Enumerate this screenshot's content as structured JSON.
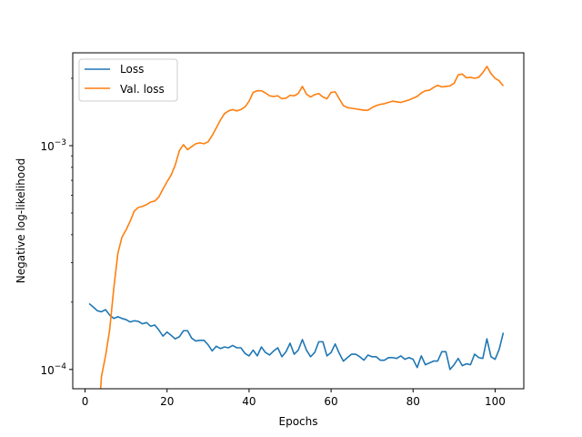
{
  "chart_data": {
    "type": "line",
    "xlabel": "Epochs",
    "ylabel": "Negative log-likelihood",
    "xlim": [
      -3,
      107
    ],
    "ylim": [
      8.2e-05,
      0.0026
    ],
    "yscale": "log",
    "grid": false,
    "legend_position": "top-left",
    "x_ticks": [
      0,
      20,
      40,
      60,
      80,
      100
    ],
    "x_tick_labels": [
      "0",
      "20",
      "40",
      "60",
      "80",
      "100"
    ],
    "y_major_ticks": [
      0.0001,
      0.001
    ],
    "y_tick_labels": [
      {
        "base": "10",
        "exp": "−4"
      },
      {
        "base": "10",
        "exp": "−3"
      }
    ],
    "y_minor_ticks": [
      0.0002,
      0.0003,
      0.0004,
      0.0005,
      0.0006,
      0.0007,
      0.0008,
      0.0009,
      0.002
    ],
    "series": [
      {
        "name": "Loss",
        "color": "#1f77b4",
        "x": [
          1,
          2,
          3,
          4,
          5,
          6,
          7,
          8,
          9,
          10,
          11,
          12,
          13,
          14,
          15,
          16,
          17,
          18,
          19,
          20,
          21,
          22,
          23,
          24,
          25,
          26,
          27,
          28,
          29,
          30,
          31,
          32,
          33,
          34,
          35,
          36,
          37,
          38,
          39,
          40,
          41,
          42,
          43,
          44,
          45,
          46,
          47,
          48,
          49,
          50,
          51,
          52,
          53,
          54,
          55,
          56,
          57,
          58,
          59,
          60,
          61,
          62,
          63,
          64,
          65,
          66,
          67,
          68,
          69,
          70,
          71,
          72,
          73,
          74,
          75,
          76,
          77,
          78,
          79,
          80,
          81,
          82,
          83,
          84,
          85,
          86,
          87,
          88,
          89,
          90,
          91,
          92,
          93,
          94,
          95,
          96,
          97,
          98,
          99,
          100,
          101,
          102
        ],
        "y": [
          0.000197,
          0.00019,
          0.000183,
          0.000181,
          0.000185,
          0.000175,
          0.000169,
          0.000172,
          0.000169,
          0.000167,
          0.000163,
          0.000165,
          0.000164,
          0.00016,
          0.000162,
          0.000156,
          0.000158,
          0.00015,
          0.000141,
          0.000147,
          0.000142,
          0.000137,
          0.00014,
          0.000149,
          0.000149,
          0.000138,
          0.000134,
          0.000135,
          0.000135,
          0.000129,
          0.000121,
          0.000127,
          0.000124,
          0.000126,
          0.000125,
          0.000128,
          0.000125,
          0.000125,
          0.000118,
          0.000115,
          0.000122,
          0.000115,
          0.000126,
          0.000119,
          0.000116,
          0.000121,
          0.000125,
          0.000114,
          0.00012,
          0.000131,
          0.000117,
          0.000122,
          0.000136,
          0.000122,
          0.000114,
          0.000119,
          0.000133,
          0.000133,
          0.000115,
          0.000119,
          0.00013,
          0.000118,
          0.000109,
          0.000113,
          0.000117,
          0.000117,
          0.000114,
          0.00011,
          0.000116,
          0.000114,
          0.000114,
          0.00011,
          0.00011,
          0.000113,
          0.000113,
          0.000112,
          0.000115,
          0.000111,
          0.000113,
          0.000111,
          0.000102,
          0.000115,
          0.000105,
          0.000107,
          0.000109,
          0.000109,
          0.00012,
          0.00012,
          0.0001,
          0.000105,
          0.000112,
          0.000104,
          0.000106,
          0.000105,
          0.000117,
          0.000113,
          0.000112,
          0.000137,
          0.000114,
          0.000111,
          0.000123,
          0.000146
        ]
      },
      {
        "name": "Val. loss",
        "color": "#ff7f0e",
        "x": [
          3.8,
          4,
          5,
          6,
          7,
          8,
          9,
          10,
          11,
          12,
          13,
          14,
          15,
          16,
          17,
          18,
          19,
          20,
          21,
          22,
          23,
          24,
          25,
          26,
          27,
          28,
          29,
          30,
          31,
          32,
          33,
          34,
          35,
          36,
          37,
          38,
          39,
          40,
          41,
          42,
          43,
          44,
          45,
          46,
          47,
          48,
          49,
          50,
          51,
          52,
          53,
          54,
          55,
          56,
          57,
          58,
          59,
          60,
          61,
          62,
          63,
          64,
          65,
          66,
          67,
          68,
          69,
          70,
          71,
          72,
          73,
          74,
          75,
          76,
          77,
          78,
          79,
          80,
          81,
          82,
          83,
          84,
          85,
          86,
          87,
          88,
          89,
          90,
          91,
          92,
          93,
          94,
          95,
          96,
          97,
          98,
          99,
          100,
          101,
          102
        ],
        "y": [
          8.2e-05,
          9.3e-05,
          0.000115,
          0.00015,
          0.00023,
          0.00033,
          0.00039,
          0.00042,
          0.00046,
          0.00051,
          0.00053,
          0.000535,
          0.000545,
          0.00056,
          0.000565,
          0.00059,
          0.00064,
          0.00069,
          0.00074,
          0.00082,
          0.00095,
          0.00101,
          0.00096,
          0.00099,
          0.00102,
          0.00103,
          0.00102,
          0.00104,
          0.00111,
          0.0012,
          0.0013,
          0.00139,
          0.00143,
          0.00145,
          0.00143,
          0.00145,
          0.00149,
          0.00158,
          0.00173,
          0.00176,
          0.00176,
          0.00172,
          0.00167,
          0.00166,
          0.00167,
          0.00162,
          0.00163,
          0.00168,
          0.00167,
          0.00171,
          0.00184,
          0.0017,
          0.00165,
          0.00169,
          0.00171,
          0.00165,
          0.00162,
          0.00173,
          0.00174,
          0.00162,
          0.00151,
          0.00148,
          0.00147,
          0.00146,
          0.00145,
          0.00144,
          0.00144,
          0.00148,
          0.00151,
          0.00153,
          0.00154,
          0.00156,
          0.00158,
          0.00157,
          0.00156,
          0.00158,
          0.0016,
          0.00163,
          0.00166,
          0.00172,
          0.00176,
          0.00177,
          0.00182,
          0.00186,
          0.00183,
          0.00184,
          0.00185,
          0.0019,
          0.00207,
          0.00209,
          0.00201,
          0.00202,
          0.002,
          0.00202,
          0.00212,
          0.00226,
          0.0021,
          0.002,
          0.00195,
          0.00185
        ]
      }
    ]
  }
}
